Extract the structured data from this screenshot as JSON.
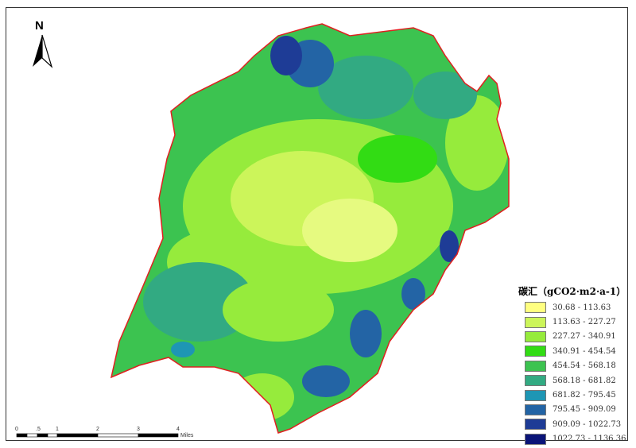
{
  "north_arrow": {
    "label": "N"
  },
  "legend": {
    "title": "碳汇（gCO2·m2·a-1）",
    "items": [
      {
        "label": "30.68 - 113.63",
        "color": "#ffff80"
      },
      {
        "label": "113.63 - 227.27",
        "color": "#ccf55a"
      },
      {
        "label": "227.27 - 340.91",
        "color": "#96eb3c"
      },
      {
        "label": "340.91 - 454.54",
        "color": "#32dc14"
      },
      {
        "label": "454.54 - 568.18",
        "color": "#3cc350"
      },
      {
        "label": "568.18 - 681.82",
        "color": "#32aa82"
      },
      {
        "label": "681.82 - 795.45",
        "color": "#1e96b4"
      },
      {
        "label": "795.45 - 909.09",
        "color": "#2364a5"
      },
      {
        "label": "909.09 - 1022.73",
        "color": "#1e3c96"
      },
      {
        "label": "1022.73 - 1136.36",
        "color": "#0a1478"
      }
    ]
  },
  "scale_bar": {
    "ticks": [
      "0",
      ".5",
      "1",
      "2",
      "3",
      "4"
    ],
    "unit": "Miles"
  },
  "boundary_color": "#e02020"
}
